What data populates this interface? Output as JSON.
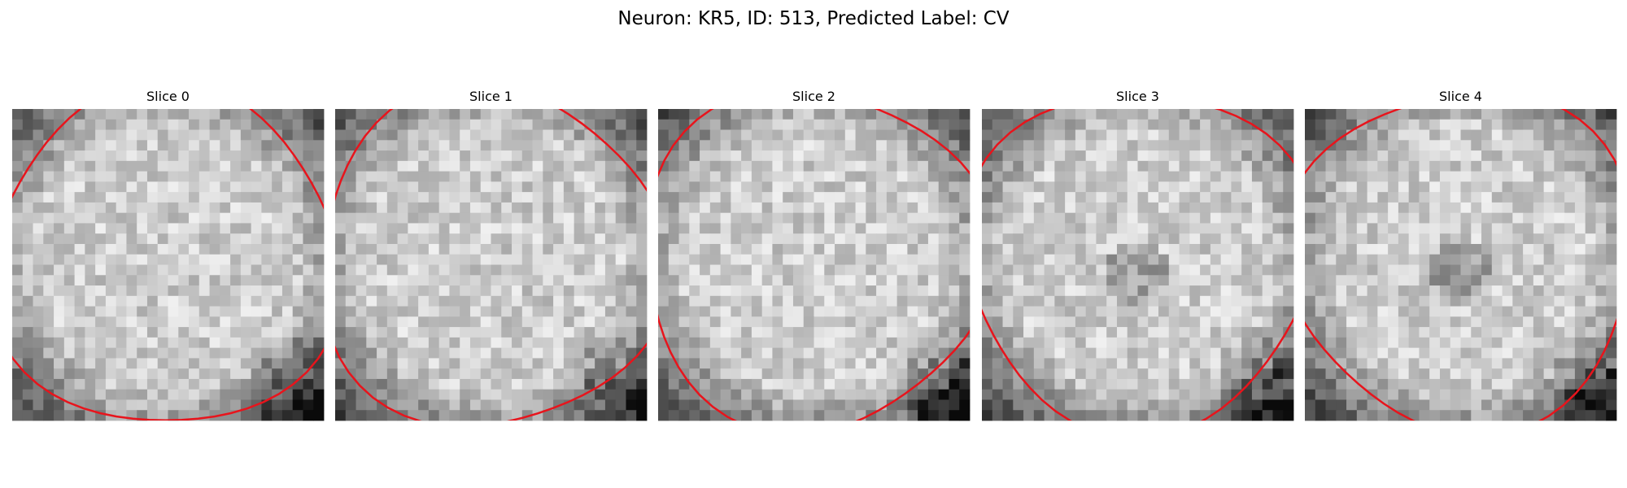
{
  "title": "Neuron: KR5, ID: 513, Predicted Label: CV",
  "panels": [
    {
      "title": "Slice 0"
    },
    {
      "title": "Slice 1"
    },
    {
      "title": "Slice 2"
    },
    {
      "title": "Slice 3"
    },
    {
      "title": "Slice 4"
    }
  ]
}
